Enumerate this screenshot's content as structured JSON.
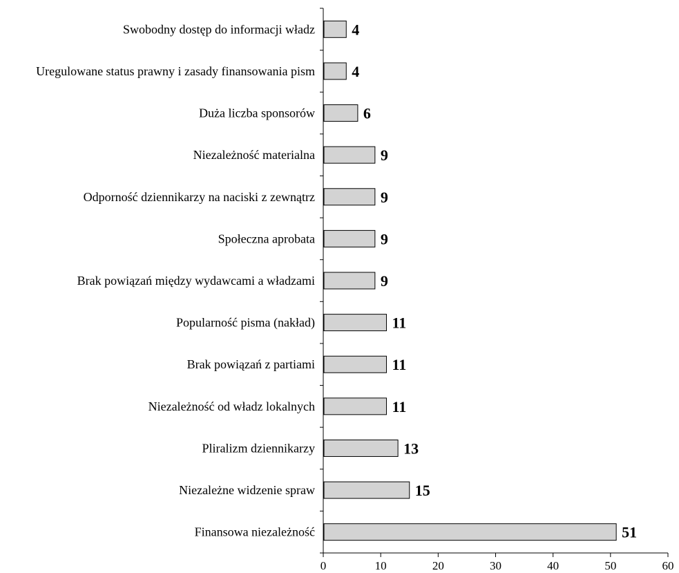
{
  "chart_data": {
    "type": "bar",
    "orientation": "horizontal",
    "title": "",
    "xlabel": "",
    "ylabel": "",
    "categories": [
      "Swobodny dostęp do informacji władz",
      "Uregulowane status prawny i zasady finansowania pism",
      "Duża liczba sponsorów",
      "Niezależność materialna",
      "Odporność dziennikarzy na naciski z zewnątrz",
      "Społeczna aprobata",
      "Brak powiązań między wydawcami a władzami",
      "Popularność pisma (nakład)",
      "Brak powiązań z partiami",
      "Niezależność od władz lokalnych",
      "Pliralizm dziennikarzy",
      "Niezależne widzenie spraw",
      "Finansowa niezależność"
    ],
    "values": [
      4,
      4,
      6,
      9,
      9,
      9,
      9,
      11,
      11,
      11,
      13,
      15,
      51
    ],
    "value_labels": [
      "4",
      "4",
      "6",
      "9",
      "9",
      "9",
      "9",
      "11",
      "11",
      "11",
      "13",
      "15",
      "51"
    ],
    "xlim": [
      0,
      60
    ],
    "x_ticks": [
      0,
      10,
      20,
      30,
      40,
      50,
      60
    ],
    "x_tick_labels": [
      "0",
      "10",
      "20",
      "30",
      "40",
      "50",
      "60"
    ],
    "grid": false,
    "legend": "none",
    "bar_color": "#d3d3d3",
    "bar_edge_color": "#000000"
  }
}
